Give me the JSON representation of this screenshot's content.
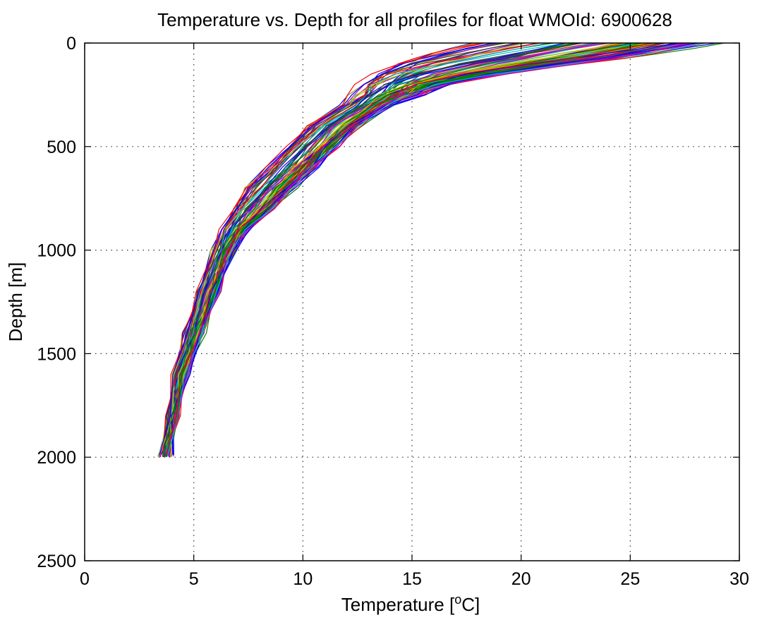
{
  "chart_data": {
    "type": "line",
    "title": "Temperature vs. Depth for all profiles for float WMOId: 6900628",
    "xlabel": "Temperature [",
    "xlabel_superscript": "o",
    "xlabel_suffix": "C]",
    "ylabel": "Depth [m]",
    "xlim": [
      0,
      30
    ],
    "ylim": [
      0,
      2500
    ],
    "y_reversed": true,
    "grid": true,
    "x_ticks": [
      "0",
      "5",
      "10",
      "15",
      "20",
      "25",
      "30"
    ],
    "y_ticks": [
      "0",
      "500",
      "1000",
      "1500",
      "2000",
      "2500"
    ],
    "legend": "none",
    "colors": [
      "#0000ff",
      "#008000",
      "#ff0000",
      "#00bfbf",
      "#bf00bf",
      "#bfbf00",
      "#404040"
    ],
    "envelope": {
      "depth": [
        0,
        25,
        50,
        75,
        100,
        150,
        200,
        250,
        300,
        400,
        500,
        600,
        700,
        800,
        900,
        1000,
        1200,
        1400,
        1600,
        1800,
        2000
      ],
      "warm_edge_temperature": [
        28.8,
        27.5,
        26.0,
        24.5,
        22.5,
        19.0,
        16.5,
        15.2,
        14.0,
        12.6,
        11.6,
        10.6,
        9.6,
        8.6,
        7.5,
        6.8,
        6.1,
        5.4,
        4.7,
        4.2,
        3.9
      ],
      "cold_edge_temperature": [
        18.0,
        16.8,
        15.8,
        15.0,
        14.2,
        13.3,
        12.8,
        12.4,
        11.8,
        10.2,
        9.3,
        8.4,
        7.4,
        6.8,
        6.3,
        5.9,
        5.2,
        4.6,
        4.1,
        3.8,
        3.5
      ]
    },
    "profile_count": 100
  }
}
